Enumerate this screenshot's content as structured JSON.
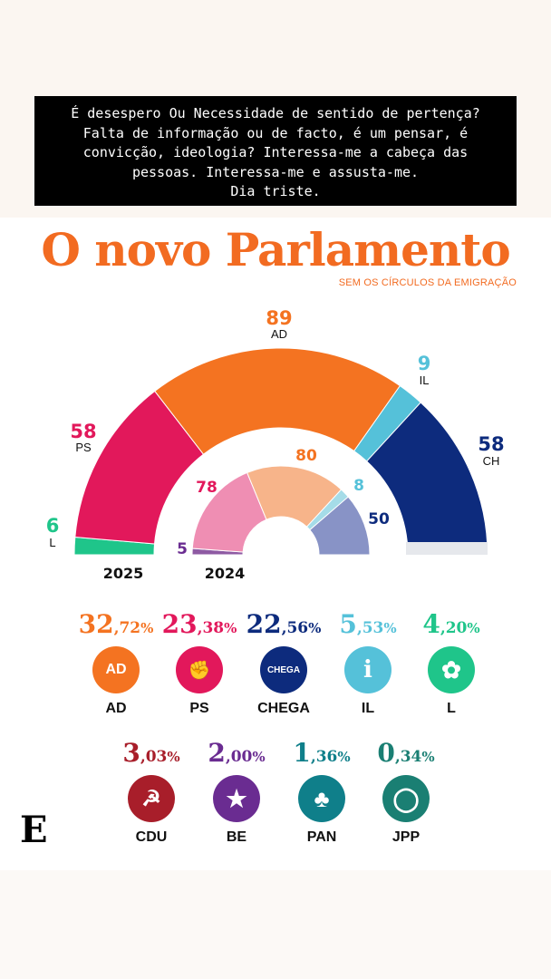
{
  "caption": {
    "lines": [
      "É desespero Ou Necessidade de sentido de pertença?",
      "Falta de informação ou de facto, é um pensar, é",
      "convicção, ideologia? Interessa-me a cabeça das",
      "pessoas. Interessa-me e assusta-me.",
      "Dia triste."
    ]
  },
  "header": {
    "title": "O novo Parlamento",
    "subtitle": "SEM OS CÍRCULOS DA EMIGRAÇÃO"
  },
  "chart_data": {
    "type": "semicircle-parliament",
    "rings": [
      {
        "year": "2025",
        "seats": [
          {
            "party": "L",
            "value": 6,
            "color": "#1fc58a"
          },
          {
            "party": "PS",
            "value": 58,
            "color": "#e2185b"
          },
          {
            "party": "AD",
            "value": 89,
            "color": "#f47321"
          },
          {
            "party": "IL",
            "value": 9,
            "color": "#55c1d9"
          },
          {
            "party": "CH",
            "value": 58,
            "color": "#0d2b7d"
          }
        ]
      },
      {
        "year": "2024",
        "seats": [
          {
            "party": "",
            "value": 5,
            "color": "#8e5aa3"
          },
          {
            "party": "",
            "value": 78,
            "color": "#ef8eb3"
          },
          {
            "party": "",
            "value": 80,
            "color": "#f7b48a"
          },
          {
            "party": "",
            "value": 8,
            "color": "#a5dce8"
          },
          {
            "party": "",
            "value": 50,
            "color": "#8893c6"
          }
        ]
      }
    ],
    "labels": {
      "ad_value": "89",
      "ad_name": "AD",
      "il_value": "9",
      "il_name": "IL",
      "ps_value": "58",
      "ps_name": "PS",
      "ch_value": "58",
      "ch_name": "CH",
      "l_value": "6",
      "l_name": "L",
      "inner_ad": "80",
      "inner_ps": "78",
      "inner_il": "8",
      "inner_ch": "50",
      "inner_small": "5",
      "year_outer": "2025",
      "year_inner": "2024"
    }
  },
  "results_row1": [
    {
      "int": "32",
      "dec": ",72",
      "pc": "%",
      "name": "AD",
      "color": "#f47321",
      "logo_text": "AD",
      "icon": "ad-logo-icon"
    },
    {
      "int": "23",
      "dec": ",38",
      "pc": "%",
      "name": "PS",
      "color": "#e2185b",
      "logo_text": "✊",
      "icon": "ps-fist-rose-icon"
    },
    {
      "int": "22",
      "dec": ",56",
      "pc": "%",
      "name": "CHEGA",
      "color": "#0d2b7d",
      "logo_text": "CHEGA",
      "icon": "chega-logo-icon"
    },
    {
      "int": "5",
      "dec": ",53",
      "pc": "%",
      "name": "IL",
      "color": "#55c1d9",
      "logo_text": "i",
      "icon": "il-logo-icon"
    },
    {
      "int": "4",
      "dec": ",20",
      "pc": "%",
      "name": "L",
      "color": "#1fc58a",
      "logo_text": "✿",
      "icon": "livre-poppy-icon"
    }
  ],
  "results_row2": [
    {
      "int": "3",
      "dec": ",03",
      "pc": "%",
      "name": "CDU",
      "color": "#a81e2a",
      "logo_text": "☭",
      "icon": "cdu-hammer-sickle-icon"
    },
    {
      "int": "2",
      "dec": ",00",
      "pc": "%",
      "name": "BE",
      "color": "#6a2c91",
      "logo_text": "★",
      "icon": "be-star-person-icon"
    },
    {
      "int": "1",
      "dec": ",36",
      "pc": "%",
      "name": "PAN",
      "color": "#0f7f8a",
      "logo_text": "♣",
      "icon": "pan-tree-icon"
    },
    {
      "int": "0",
      "dec": ",34",
      "pc": "%",
      "name": "JPP",
      "color": "#1a7f73",
      "logo_text": "◯",
      "icon": "jpp-logo-icon"
    }
  ],
  "brand": {
    "letter": "E"
  }
}
